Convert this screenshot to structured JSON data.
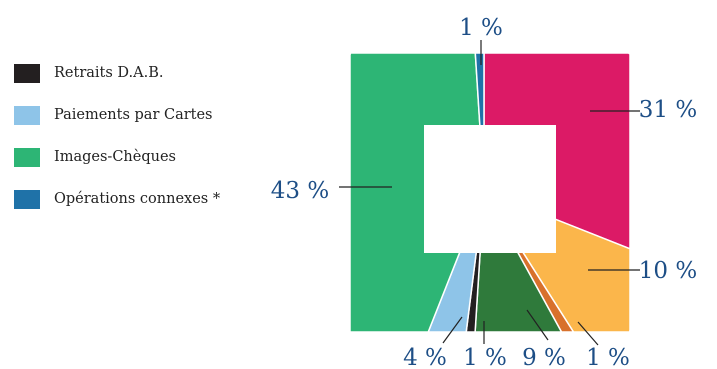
{
  "legend": {
    "items": [
      {
        "label": "Retraits D.A.B.",
        "color": "#231f20"
      },
      {
        "label": "Paiements par Cartes",
        "color": "#8ec4e8"
      },
      {
        "label": "Images-Chèques",
        "color": "#2db575"
      },
      {
        "label": "Opérations connexes *",
        "color": "#1f72a8"
      }
    ]
  },
  "chart_data": {
    "type": "pie",
    "shape": "square ring",
    "start": "top, clockwise",
    "slices": [
      {
        "value": 31,
        "label": "31 %",
        "color": "#dc1a66"
      },
      {
        "value": 10,
        "label": "10 %",
        "color": "#fbb64b"
      },
      {
        "value": 1,
        "label": "1 %",
        "color": "#d8712c"
      },
      {
        "value": 9,
        "label": "9 %",
        "color": "#2f7a3b"
      },
      {
        "value": 1,
        "label": "1 %",
        "color": "#231f20"
      },
      {
        "value": 4,
        "label": "4 %",
        "color": "#8ec4e8"
      },
      {
        "value": 43,
        "label": "43 %",
        "color": "#2db575"
      },
      {
        "value": 1,
        "label": "1 %",
        "color": "#1f72a8"
      }
    ]
  }
}
